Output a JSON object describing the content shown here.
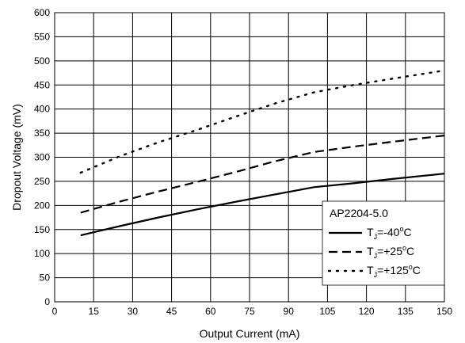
{
  "chart_data": {
    "type": "line",
    "title": "",
    "xlabel": "Output Current (mA)",
    "ylabel": "Dropout Voltage (mV)",
    "xlim": [
      0,
      150
    ],
    "ylim": [
      0,
      600
    ],
    "x_ticks": [
      "0",
      "15",
      "30",
      "45",
      "60",
      "75",
      "90",
      "105",
      "120",
      "135",
      "150"
    ],
    "y_ticks": [
      "0",
      "50",
      "100",
      "150",
      "200",
      "250",
      "300",
      "350",
      "400",
      "450",
      "500",
      "550",
      "600"
    ],
    "grid": true,
    "legend_title": "AP2204-5.0",
    "legend_position": "bottom-right",
    "series": [
      {
        "name": "T_J=-40°C",
        "name_parts": {
          "base": "T",
          "sub": "J",
          "value": "=-40",
          "sup": "o",
          "unit": "C"
        },
        "style": "solid",
        "x": [
          10,
          25,
          40,
          55,
          70,
          85,
          100,
          115,
          130,
          150
        ],
        "y": [
          138,
          157,
          175,
          192,
          208,
          223,
          238,
          246,
          255,
          266
        ]
      },
      {
        "name": "T_J=+25°C",
        "name_parts": {
          "base": "T",
          "sub": "J",
          "value": "=+25",
          "sup": "o",
          "unit": "C"
        },
        "style": "dashed",
        "x": [
          10,
          25,
          40,
          55,
          70,
          85,
          100,
          115,
          130,
          150
        ],
        "y": [
          185,
          208,
          229,
          249,
          270,
          292,
          311,
          322,
          332,
          345
        ]
      },
      {
        "name": "T_J=+125°C",
        "name_parts": {
          "base": "T",
          "sub": "J",
          "value": "=+125",
          "sup": "o",
          "unit": "C"
        },
        "style": "dotted",
        "x": [
          10,
          25,
          40,
          55,
          70,
          85,
          100,
          115,
          130,
          150
        ],
        "y": [
          268,
          302,
          331,
          357,
          385,
          412,
          435,
          450,
          463,
          480
        ]
      }
    ]
  }
}
